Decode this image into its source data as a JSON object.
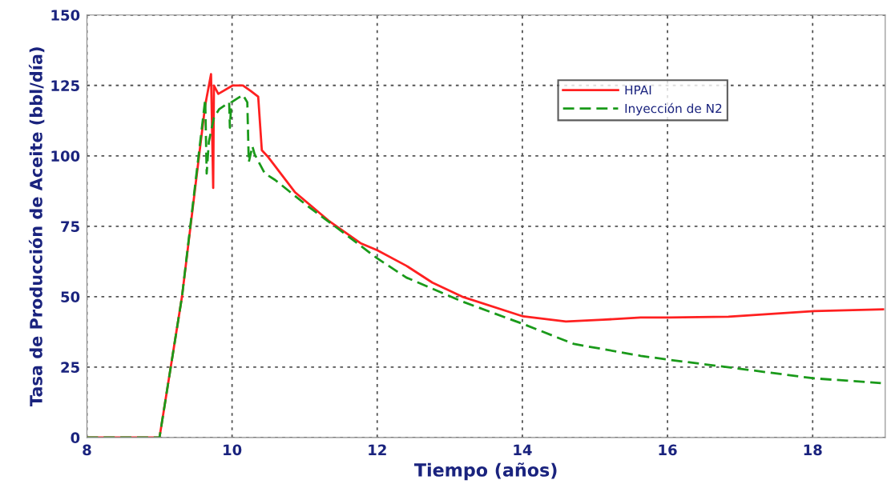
{
  "chart_data": {
    "type": "line",
    "xlabel": "Tiempo (años)",
    "ylabel": "Tasa de Producción de Aceite (bbl/día)",
    "xlim": [
      8,
      19
    ],
    "ylim": [
      0,
      150
    ],
    "xticks": [
      8,
      10,
      12,
      14,
      16,
      18
    ],
    "yticks": [
      0,
      25,
      50,
      75,
      100,
      125,
      150
    ],
    "grid": true,
    "legend": "upper right",
    "marker": "none",
    "series": [
      {
        "name": "HPAI",
        "color": "#ff2020",
        "line_style": "solid",
        "x": [
          8.0,
          9.0,
          9.31,
          9.63,
          9.71,
          9.74,
          9.75,
          9.81,
          10.01,
          10.15,
          10.26,
          10.36,
          10.41,
          10.5,
          10.87,
          11.33,
          11.77,
          12.0,
          12.4,
          12.76,
          13.17,
          14.01,
          14.6,
          15.11,
          15.63,
          16.02,
          16.84,
          18.02,
          18.97
        ],
        "values": [
          0,
          0,
          50,
          118,
          129,
          88.6,
          125,
          122,
          125,
          125,
          123,
          121,
          102,
          99.5,
          87,
          77,
          69,
          66.5,
          61,
          55,
          50,
          43,
          41.2,
          41.8,
          42.6,
          42.6,
          42.9,
          44.9,
          45.5
        ]
      },
      {
        "name": "Inyección de N2",
        "color": "#1a9a1a",
        "line_style": "dashed",
        "x": [
          8.0,
          9.0,
          9.31,
          9.63,
          9.65,
          9.68,
          9.75,
          9.82,
          9.96,
          9.97,
          9.99,
          10.08,
          10.15,
          10.21,
          10.23,
          10.28,
          10.31,
          10.45,
          10.59,
          11.03,
          11.52,
          12.0,
          12.4,
          13.17,
          14.01,
          14.71,
          15.63,
          16.02,
          16.73,
          18.02,
          18.94
        ],
        "values": [
          0,
          0,
          50,
          120,
          93.7,
          105,
          113.6,
          116.5,
          119,
          110,
          119,
          120.5,
          121.6,
          119,
          97.7,
          103.4,
          100.6,
          93.8,
          91.5,
          82.4,
          73,
          63.6,
          56.8,
          48.3,
          40.3,
          33.2,
          29,
          27.6,
          25.3,
          21,
          19.3
        ]
      }
    ]
  }
}
